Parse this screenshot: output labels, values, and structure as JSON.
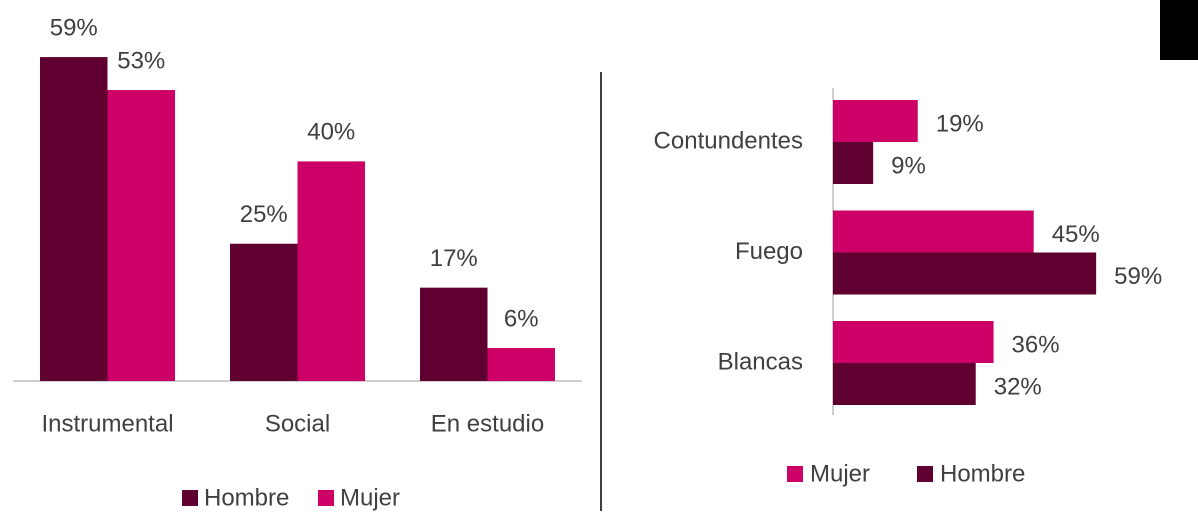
{
  "chart_data": [
    {
      "type": "bar",
      "categories": [
        "Instrumental",
        "Social",
        "En estudio"
      ],
      "series": [
        {
          "name": "Hombre",
          "color": "#5f0030",
          "values": [
            59,
            25,
            17
          ],
          "value_labels": [
            "59%",
            "25%",
            "17%"
          ]
        },
        {
          "name": "Mujer",
          "color": "#cc0066",
          "values": [
            53,
            40,
            6
          ],
          "value_labels": [
            "53%",
            "40%",
            "6%"
          ]
        }
      ],
      "legend": "bottom"
    },
    {
      "type": "barh",
      "categories": [
        "Contundentes",
        "Fuego",
        "Blancas"
      ],
      "series": [
        {
          "name": "Mujer",
          "color": "#cc0066",
          "values": [
            19,
            45,
            36
          ],
          "value_labels": [
            "19%",
            "45%",
            "36%"
          ]
        },
        {
          "name": "Hombre",
          "color": "#5f0030",
          "values": [
            9,
            59,
            32
          ],
          "value_labels": [
            "9%",
            "59%",
            "32%"
          ]
        }
      ],
      "legend": "bottom"
    }
  ]
}
